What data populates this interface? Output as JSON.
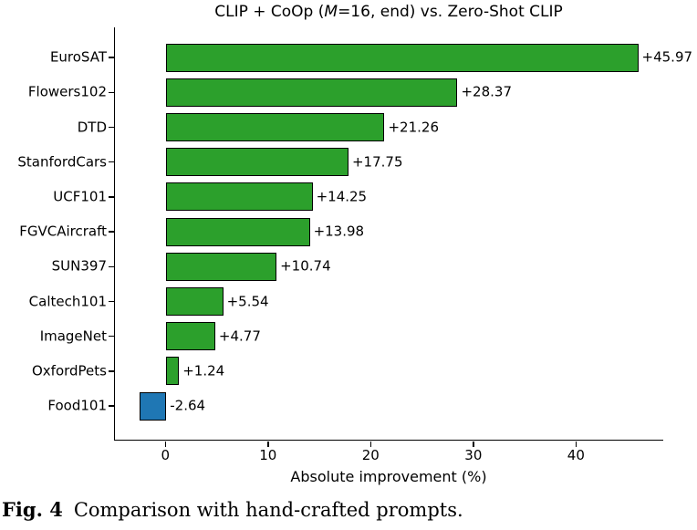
{
  "figure": {
    "title": {
      "prefix": "CLIP + CoOp (",
      "italic": "M",
      "suffix": "=16, end) vs. Zero-Shot CLIP"
    },
    "xlabel": "Absolute improvement (%)",
    "caption": {
      "label": "Fig. 4",
      "text": "Comparison with hand-crafted prompts."
    }
  },
  "chart_data": {
    "type": "bar",
    "orientation": "horizontal",
    "title": "CLIP + CoOp (M=16, end) vs. Zero-Shot CLIP",
    "xlabel": "Absolute improvement (%)",
    "ylabel": "",
    "categories": [
      "EuroSAT",
      "Flowers102",
      "DTD",
      "StanfordCars",
      "UCF101",
      "FGVCAircraft",
      "SUN397",
      "Caltech101",
      "ImageNet",
      "OxfordPets",
      "Food101"
    ],
    "values": [
      45.97,
      28.37,
      21.26,
      17.75,
      14.25,
      13.98,
      10.74,
      5.54,
      4.77,
      1.24,
      -2.64
    ],
    "value_labels": [
      "+45.97",
      "+28.37",
      "+21.26",
      "+17.75",
      "+14.25",
      "+13.98",
      "+10.74",
      "+5.54",
      "+4.77",
      "+1.24",
      "-2.64"
    ],
    "x_ticks": [
      0,
      10,
      20,
      30,
      40
    ],
    "xlim": [
      -5,
      48.5
    ],
    "grid": false,
    "legend": false,
    "positive_color": "#2ca02c",
    "negative_color": "#1f77b4",
    "bar_edge_color": "#000000"
  }
}
